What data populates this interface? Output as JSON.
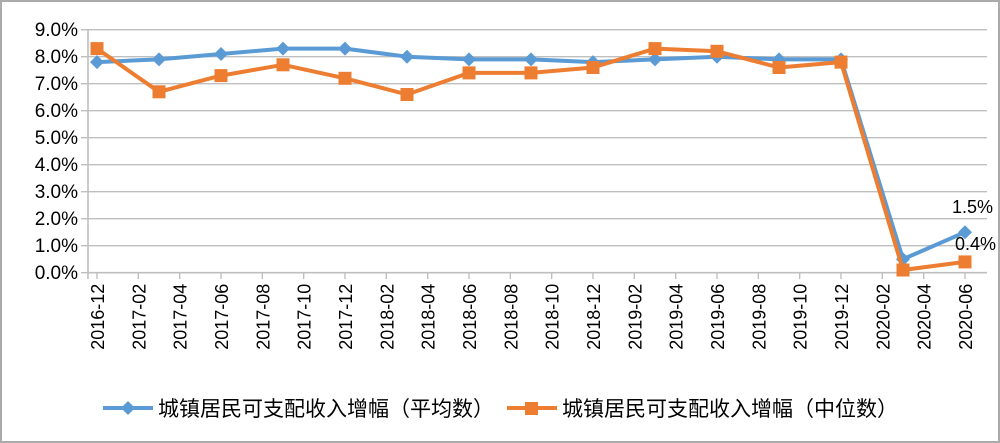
{
  "chart_data": {
    "type": "line",
    "title": "",
    "grid": "horizontal",
    "legend_position": "bottom",
    "axis_color": "#BFBFBF",
    "text_color": "#000000",
    "x_axis": {
      "labels": [
        "2016-12",
        "2017-02",
        "2017-04",
        "2017-06",
        "2017-08",
        "2017-10",
        "2017-12",
        "2018-02",
        "2018-04",
        "2018-06",
        "2018-08",
        "2018-10",
        "2018-12",
        "2019-02",
        "2019-04",
        "2019-06",
        "2019-08",
        "2019-10",
        "2019-12",
        "2020-02",
        "2020-04",
        "2020-06"
      ],
      "label_month_step": 2,
      "total_months": 42
    },
    "y_axis": {
      "min": 0,
      "max": 9,
      "step": 1,
      "tick_labels": [
        "0.0%",
        "1.0%",
        "2.0%",
        "3.0%",
        "4.0%",
        "5.0%",
        "6.0%",
        "7.0%",
        "8.0%",
        "9.0%"
      ]
    },
    "series": [
      {
        "name": "城镇居民可支配收入增幅（平均数）",
        "color": "#5B9BD5",
        "marker": "diamond",
        "months": [
          0,
          3,
          6,
          9,
          12,
          15,
          18,
          21,
          24,
          27,
          30,
          33,
          36,
          39,
          42
        ],
        "values": [
          7.8,
          7.9,
          8.1,
          8.3,
          8.3,
          8.0,
          7.9,
          7.9,
          7.8,
          7.9,
          8.0,
          7.9,
          7.9,
          0.5,
          1.5
        ],
        "end_label": "1.5%"
      },
      {
        "name": "城镇居民可支配收入增幅（中位数）",
        "color": "#ED7D31",
        "marker": "square",
        "months": [
          0,
          3,
          6,
          9,
          12,
          15,
          18,
          21,
          24,
          27,
          30,
          33,
          36,
          39,
          42
        ],
        "values": [
          8.3,
          6.7,
          7.3,
          7.7,
          7.2,
          6.6,
          7.4,
          7.4,
          7.6,
          8.3,
          8.2,
          7.6,
          7.8,
          0.1,
          0.4
        ],
        "end_label": "0.4%"
      }
    ]
  }
}
